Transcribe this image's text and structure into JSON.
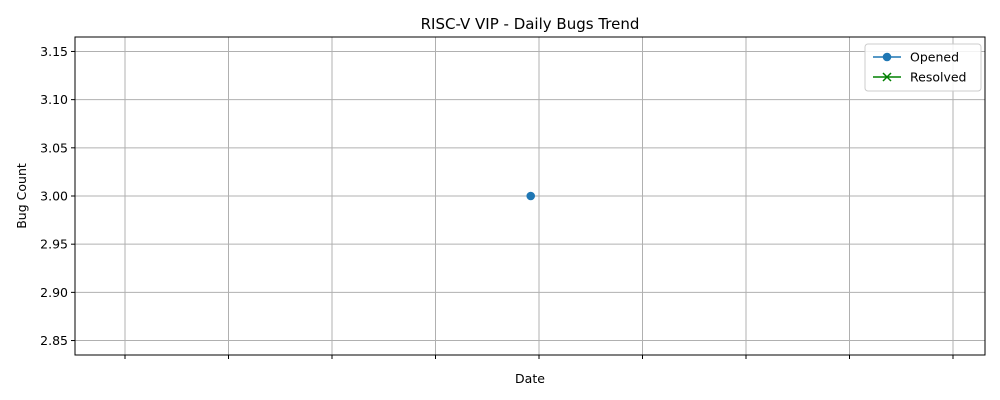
{
  "chart_data": {
    "type": "line",
    "title": "RISC-V VIP - Daily Bugs Trend",
    "xlabel": "Date",
    "ylabel": "Bug Count",
    "ylim": [
      2.835,
      3.165
    ],
    "yticks": [
      "2.85",
      "2.90",
      "2.95",
      "3.00",
      "3.05",
      "3.10",
      "3.15"
    ],
    "ytick_values": [
      2.85,
      2.9,
      2.95,
      3.0,
      3.05,
      3.1,
      3.15
    ],
    "xtick_count": 9,
    "xtick_labels": [
      "",
      "",
      "",
      "",
      "",
      "",
      "",
      "",
      ""
    ],
    "grid": true,
    "legend_position": "top-right",
    "series": [
      {
        "name": "Opened",
        "marker": "circle",
        "color": "#1f77b4",
        "points": [
          {
            "x_index": 3.92,
            "y": 3.0
          }
        ]
      },
      {
        "name": "Resolved",
        "marker": "x",
        "color": "#008000",
        "points": []
      }
    ]
  }
}
